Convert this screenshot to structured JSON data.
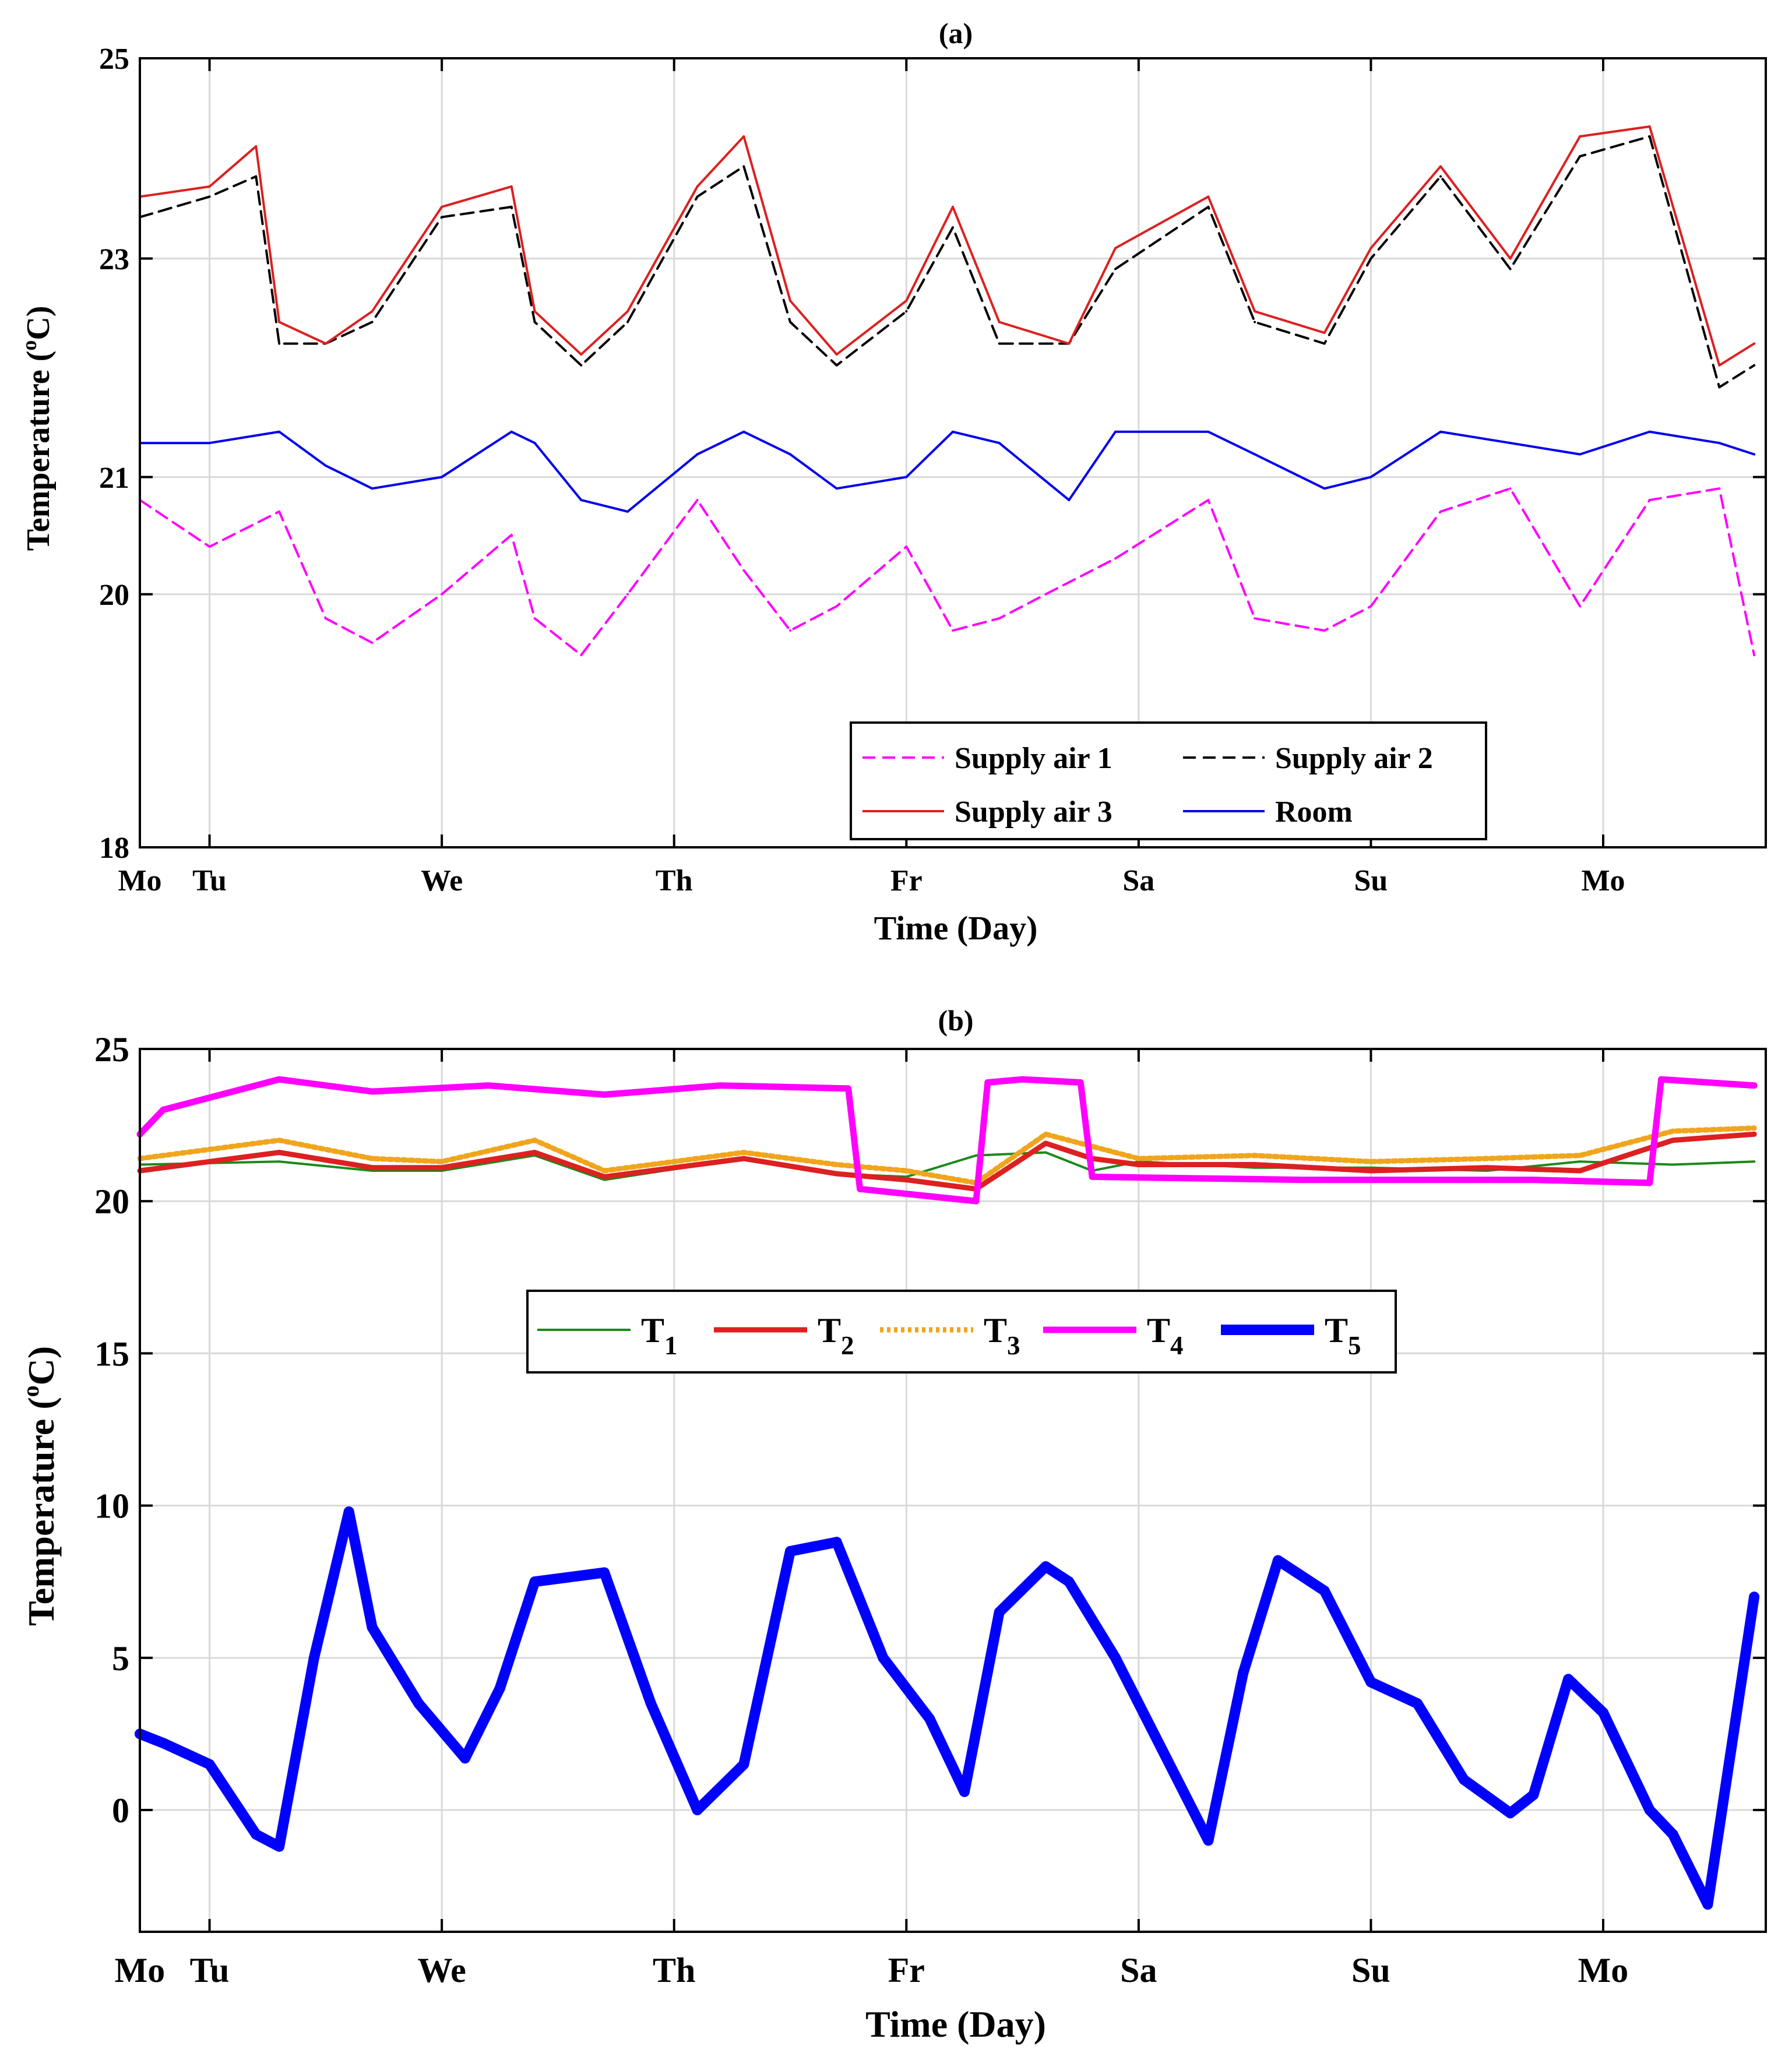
{
  "chart_data": [
    {
      "type": "line",
      "title": "(a)",
      "xlabel": "Time (Day)",
      "ylabel_main": "Temperature (",
      "ylabel_sup": "o",
      "ylabel_end": "C)",
      "xlim": [
        0,
        7.0
      ],
      "ylim": [
        18,
        25
      ],
      "yscale": "log",
      "xticks": [
        {
          "x": 0.0,
          "label": "Mo"
        },
        {
          "x": 0.3,
          "label": "Tu"
        },
        {
          "x": 1.3,
          "label": "We"
        },
        {
          "x": 2.3,
          "label": "Th"
        },
        {
          "x": 3.3,
          "label": "Fr"
        },
        {
          "x": 4.3,
          "label": "Sa"
        },
        {
          "x": 5.3,
          "label": "Su"
        },
        {
          "x": 6.3,
          "label": "Mo"
        }
      ],
      "yticks": [
        {
          "y": 18,
          "label": "18"
        },
        {
          "y": 20,
          "label": "20"
        },
        {
          "y": 21,
          "label": "21"
        },
        {
          "y": 23,
          "label": "23"
        },
        {
          "y": 25,
          "label": "25"
        }
      ],
      "legend_position": "bottom-right",
      "series": [
        {
          "name": "Supply air  1",
          "color": "#ff00ff",
          "dash": "dash",
          "x": [
            0,
            0.3,
            0.6,
            0.8,
            1.0,
            1.3,
            1.6,
            1.7,
            1.9,
            2.1,
            2.4,
            2.6,
            2.8,
            3.0,
            3.3,
            3.5,
            3.7,
            3.9,
            4.2,
            4.6,
            4.8,
            5.1,
            5.3,
            5.6,
            5.9,
            6.2,
            6.5,
            6.8,
            6.95
          ],
          "y": [
            20.8,
            20.4,
            20.7,
            19.8,
            19.6,
            20.0,
            20.5,
            19.8,
            19.5,
            20.0,
            20.8,
            20.2,
            19.7,
            19.9,
            20.4,
            19.7,
            19.8,
            20.0,
            20.3,
            20.8,
            19.8,
            19.7,
            19.9,
            20.7,
            20.9,
            19.9,
            20.8,
            20.9,
            19.5
          ]
        },
        {
          "name": "Supply air  2",
          "color": "#000000",
          "dash": "dash",
          "x": [
            0,
            0.3,
            0.5,
            0.6,
            0.8,
            1.0,
            1.3,
            1.6,
            1.7,
            1.9,
            2.1,
            2.4,
            2.6,
            2.8,
            3.0,
            3.3,
            3.5,
            3.7,
            4.0,
            4.2,
            4.6,
            4.8,
            5.1,
            5.3,
            5.6,
            5.9,
            6.2,
            6.5,
            6.8,
            6.95
          ],
          "y": [
            23.4,
            23.6,
            23.8,
            22.2,
            22.2,
            22.4,
            23.4,
            23.5,
            22.4,
            22.0,
            22.4,
            23.6,
            23.9,
            22.4,
            22.0,
            22.5,
            23.3,
            22.2,
            22.2,
            22.9,
            23.5,
            22.4,
            22.2,
            23.0,
            23.8,
            22.9,
            24.0,
            24.2,
            21.8,
            22.0
          ]
        },
        {
          "name": "Supply air  3",
          "color": "#dd2020",
          "dash": "solid",
          "x": [
            0,
            0.3,
            0.5,
            0.6,
            0.8,
            1.0,
            1.3,
            1.6,
            1.7,
            1.9,
            2.1,
            2.4,
            2.6,
            2.8,
            3.0,
            3.3,
            3.5,
            3.7,
            4.0,
            4.2,
            4.6,
            4.8,
            5.1,
            5.3,
            5.6,
            5.9,
            6.2,
            6.5,
            6.8,
            6.95
          ],
          "y": [
            23.6,
            23.7,
            24.1,
            22.4,
            22.2,
            22.5,
            23.5,
            23.7,
            22.5,
            22.1,
            22.5,
            23.7,
            24.2,
            22.6,
            22.1,
            22.6,
            23.5,
            22.4,
            22.2,
            23.1,
            23.6,
            22.5,
            22.3,
            23.1,
            23.9,
            23.0,
            24.2,
            24.3,
            22.0,
            22.2
          ]
        },
        {
          "name": "Room",
          "color": "#0000ee",
          "dash": "solid",
          "x": [
            0,
            0.3,
            0.6,
            0.8,
            1.0,
            1.3,
            1.6,
            1.7,
            1.9,
            2.1,
            2.4,
            2.6,
            2.8,
            3.0,
            3.3,
            3.5,
            3.7,
            4.0,
            4.2,
            4.6,
            4.8,
            5.1,
            5.3,
            5.6,
            5.9,
            6.2,
            6.5,
            6.8,
            6.95
          ],
          "y": [
            21.3,
            21.3,
            21.4,
            21.1,
            20.9,
            21.0,
            21.4,
            21.3,
            20.8,
            20.7,
            21.2,
            21.4,
            21.2,
            20.9,
            21.0,
            21.4,
            21.3,
            20.8,
            21.4,
            21.4,
            21.2,
            20.9,
            21.0,
            21.4,
            21.3,
            21.2,
            21.4,
            21.3,
            21.2
          ]
        }
      ]
    },
    {
      "type": "line",
      "title": "(b)",
      "xlabel": "Time (Day)",
      "ylabel_main": "Temperature (",
      "ylabel_sup": "o",
      "ylabel_end": "C)",
      "xlim": [
        0,
        7.0
      ],
      "ylim": [
        -4,
        25
      ],
      "xticks": [
        {
          "x": 0.0,
          "label": "Mo"
        },
        {
          "x": 0.3,
          "label": "Tu"
        },
        {
          "x": 1.3,
          "label": "We"
        },
        {
          "x": 2.3,
          "label": "Th"
        },
        {
          "x": 3.3,
          "label": "Fr"
        },
        {
          "x": 4.3,
          "label": "Sa"
        },
        {
          "x": 5.3,
          "label": "Su"
        },
        {
          "x": 6.3,
          "label": "Mo"
        }
      ],
      "yticks": [
        {
          "y": 0,
          "label": "0"
        },
        {
          "y": 5,
          "label": "5"
        },
        {
          "y": 10,
          "label": "10"
        },
        {
          "y": 15,
          "label": "15"
        },
        {
          "y": 20,
          "label": "20"
        },
        {
          "y": 25,
          "label": "25"
        }
      ],
      "legend_position": "upper-center",
      "series": [
        {
          "name": "T",
          "sub": "1",
          "color": "#1a8a1a",
          "width": "thin",
          "dash": "solid",
          "x": [
            0,
            0.6,
            1.0,
            1.3,
            1.7,
            2.0,
            2.6,
            3.0,
            3.3,
            3.6,
            3.9,
            4.1,
            4.3,
            4.8,
            5.3,
            5.8,
            6.2,
            6.6,
            6.95
          ],
          "y": [
            21.2,
            21.3,
            21.0,
            21.0,
            21.5,
            20.7,
            21.4,
            20.9,
            20.8,
            21.5,
            21.6,
            21.0,
            21.3,
            21.1,
            21.1,
            21.0,
            21.3,
            21.2,
            21.3
          ]
        },
        {
          "name": "T",
          "sub": "2",
          "color": "#dd2020",
          "width": "medium",
          "dash": "solid",
          "x": [
            0,
            0.6,
            1.0,
            1.3,
            1.7,
            2.0,
            2.6,
            3.0,
            3.3,
            3.6,
            3.9,
            4.1,
            4.3,
            4.8,
            5.3,
            5.8,
            6.2,
            6.6,
            6.95
          ],
          "y": [
            21.0,
            21.6,
            21.1,
            21.1,
            21.6,
            20.8,
            21.4,
            20.9,
            20.7,
            20.4,
            21.9,
            21.4,
            21.2,
            21.2,
            21.0,
            21.1,
            21.0,
            22.0,
            22.2
          ]
        },
        {
          "name": "T",
          "sub": "3",
          "color": "#f0a51c",
          "width": "medium",
          "dash": "dot",
          "x": [
            0,
            0.6,
            1.0,
            1.3,
            1.7,
            2.0,
            2.6,
            3.0,
            3.3,
            3.6,
            3.9,
            4.1,
            4.3,
            4.8,
            5.3,
            5.8,
            6.2,
            6.6,
            6.95
          ],
          "y": [
            21.4,
            22.0,
            21.4,
            21.3,
            22.0,
            21.0,
            21.6,
            21.2,
            21.0,
            20.6,
            22.2,
            21.8,
            21.4,
            21.5,
            21.3,
            21.4,
            21.5,
            22.3,
            22.4
          ]
        },
        {
          "name": "T",
          "sub": "4",
          "color": "#ff00ff",
          "width": "thick",
          "dash": "solid",
          "x": [
            0,
            0.1,
            0.6,
            1.0,
            1.5,
            2.0,
            2.5,
            3.05,
            3.1,
            3.6,
            3.65,
            3.8,
            4.05,
            4.1,
            5.0,
            6.0,
            6.5,
            6.55,
            6.95
          ],
          "y": [
            22.2,
            23.0,
            24.0,
            23.6,
            23.8,
            23.5,
            23.8,
            23.7,
            20.4,
            20.0,
            23.9,
            24.0,
            23.9,
            20.8,
            20.7,
            20.7,
            20.6,
            24.0,
            23.8
          ]
        },
        {
          "name": "T",
          "sub": "5",
          "color": "#0000ff",
          "width": "heavy",
          "dash": "solid",
          "x": [
            0,
            0.1,
            0.3,
            0.5,
            0.6,
            0.75,
            0.9,
            1.0,
            1.2,
            1.4,
            1.55,
            1.7,
            2.0,
            2.2,
            2.4,
            2.6,
            2.8,
            3.0,
            3.2,
            3.4,
            3.55,
            3.7,
            3.9,
            4.0,
            4.2,
            4.4,
            4.6,
            4.75,
            4.9,
            5.1,
            5.3,
            5.5,
            5.7,
            5.9,
            6.0,
            6.15,
            6.3,
            6.5,
            6.6,
            6.75,
            6.95
          ],
          "y": [
            2.5,
            2.2,
            1.5,
            -0.8,
            -1.2,
            5.0,
            9.8,
            6.0,
            3.5,
            1.7,
            4.0,
            7.5,
            7.8,
            3.5,
            0.0,
            1.5,
            8.5,
            8.8,
            5.0,
            3.0,
            0.6,
            6.5,
            8.0,
            7.5,
            5.0,
            2.0,
            -1.0,
            4.5,
            8.2,
            7.2,
            4.2,
            3.5,
            1.0,
            -0.1,
            0.5,
            4.3,
            3.2,
            0.0,
            -0.8,
            -3.1,
            7.0
          ]
        }
      ]
    }
  ]
}
